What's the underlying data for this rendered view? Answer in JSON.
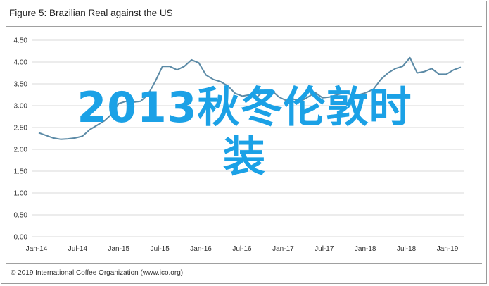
{
  "figure": {
    "title": "Figure 5: Brazilian Real against the US",
    "footer": "© 2019 International Coffee Organization (www.ico.org)",
    "overlay_text": "2013秋冬伦敦时\n装"
  },
  "colors": {
    "line": "#5b8aa6",
    "grid": "#d9d9d9",
    "overlay": "#1ba1e6"
  },
  "chart_data": {
    "type": "line",
    "title": "Figure 5: Brazilian Real against the US",
    "xlabel": "",
    "ylabel": "",
    "ylim": [
      0,
      4.5
    ],
    "yticks": [
      "0.00",
      "0.50",
      "1.00",
      "1.50",
      "2.00",
      "2.50",
      "3.00",
      "3.50",
      "4.00",
      "4.50"
    ],
    "xticks": [
      "Jan-14",
      "Jul-14",
      "Jan-15",
      "Jul-15",
      "Jan-16",
      "Jul-16",
      "Jan-17",
      "Jul-17",
      "Jan-18",
      "Jul-18",
      "Jan-19"
    ],
    "grid": true,
    "series": [
      {
        "values": [
          2.38,
          2.32,
          2.26,
          2.23,
          2.24,
          2.26,
          2.3,
          2.45,
          2.55,
          2.65,
          2.8,
          3.05,
          3.1,
          3.08,
          3.1,
          3.25,
          3.55,
          3.9,
          3.9,
          3.82,
          3.9,
          4.05,
          3.98,
          3.7,
          3.6,
          3.55,
          3.45,
          3.28,
          3.22,
          3.25,
          3.2,
          3.35,
          3.35,
          3.2,
          3.12,
          3.15,
          3.1,
          3.2,
          3.3,
          3.18,
          3.2,
          3.25,
          3.3,
          3.25,
          3.25,
          3.3,
          3.38,
          3.6,
          3.75,
          3.85,
          3.9,
          4.1,
          3.75,
          3.78,
          3.85,
          3.72,
          3.72,
          3.82,
          3.88
        ]
      }
    ]
  }
}
